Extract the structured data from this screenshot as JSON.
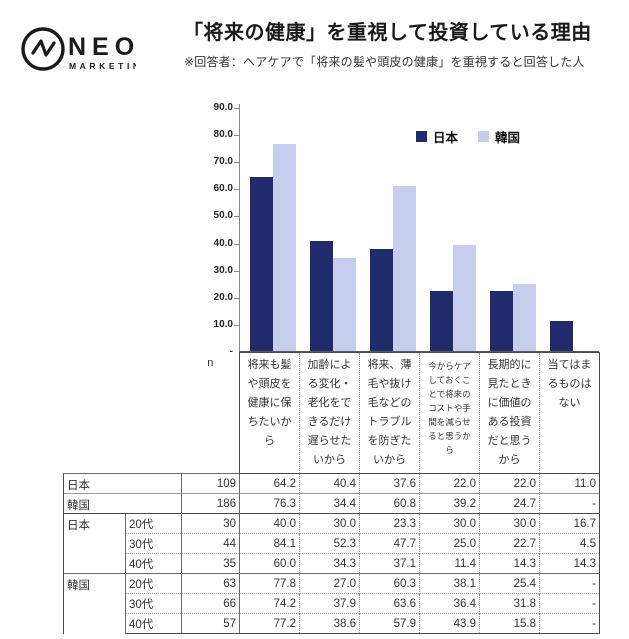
{
  "logo": {
    "brand": "NEO",
    "sub": "MARKETING"
  },
  "header": {
    "title": "「将来の健康」を重視して投資している理由",
    "subtitle": "※回答者：ヘアケアで「将来の髪や頭皮の健康」を重視すると回答した人"
  },
  "colors": {
    "japan": "#1f2b6b",
    "korea": "#c7cdec",
    "axis": "#8a8a8a"
  },
  "chart_data": {
    "type": "bar",
    "categories": [
      "将来も髪や頭皮を健康に保ちたいから",
      "加齢による変化・老化をできるだけ遅らせたいから",
      "将来、薄毛や抜け毛などのトラブルを防ぎたいから",
      "今からケアしておくことで将来のコストや手間を減らせると思うから",
      "長期的に見たときに価値のある投資だと思うから",
      "当てはまるものはない"
    ],
    "series": [
      {
        "name": "日本",
        "color": "#1f2b6b",
        "values": [
          64.2,
          40.4,
          37.6,
          22.0,
          22.0,
          11.0
        ]
      },
      {
        "name": "韓国",
        "color": "#c7cdec",
        "values": [
          76.3,
          34.4,
          60.8,
          39.2,
          24.7,
          null
        ]
      }
    ],
    "ylim": [
      0,
      90
    ],
    "ytick_values": [
      90,
      80,
      70,
      60,
      50,
      40,
      30,
      20,
      10,
      0
    ],
    "ytick_labels": [
      "90.0",
      "80.0",
      "70.0",
      "60.0",
      "50.0",
      "40.0",
      "30.0",
      "20.0",
      "10.0",
      "-"
    ],
    "grid": false,
    "legend_position": "top-right-inside"
  },
  "table": {
    "n_label": "n",
    "col_headers": [
      "将来も髪や頭皮を健康に保ちたいから",
      "加齢による変化・老化をできるだけ遅らせたいから",
      "将来、薄毛や抜け毛などのトラブルを防ぎたいから",
      "今からケアしておくことで将来のコストや手間を減らせると思うから",
      "長期的に見たときに価値のある投資だと思うから",
      "当てはまるものはない"
    ],
    "rows": [
      {
        "kind": "total",
        "label": "日本",
        "n": "109",
        "values": [
          "64.2",
          "40.4",
          "37.6",
          "22.0",
          "22.0",
          "11.0"
        ],
        "sep": "bt-solid"
      },
      {
        "kind": "total",
        "label": "韓国",
        "n": "186",
        "values": [
          "76.3",
          "34.4",
          "60.8",
          "39.2",
          "24.7",
          "-"
        ],
        "sep": "bt-thin"
      },
      {
        "kind": "age",
        "group": "日本",
        "groupspan": 3,
        "age": "20代",
        "n": "30",
        "values": [
          "40.0",
          "30.0",
          "23.3",
          "30.0",
          "30.0",
          "16.7"
        ],
        "sep": "bt-heavy"
      },
      {
        "kind": "age",
        "age": "30代",
        "n": "44",
        "values": [
          "84.1",
          "52.3",
          "47.7",
          "25.0",
          "22.7",
          "4.5"
        ],
        "sep": "bt-dot"
      },
      {
        "kind": "age",
        "age": "40代",
        "n": "35",
        "values": [
          "60.0",
          "34.3",
          "37.1",
          "11.4",
          "14.3",
          "14.3"
        ],
        "sep": "bt-dot"
      },
      {
        "kind": "age",
        "group": "韓国",
        "groupspan": 3,
        "age": "20代",
        "n": "63",
        "values": [
          "77.8",
          "27.0",
          "60.3",
          "38.1",
          "25.4",
          "-"
        ],
        "sep": "bt-solid"
      },
      {
        "kind": "age",
        "age": "30代",
        "n": "66",
        "values": [
          "74.2",
          "37.9",
          "63.6",
          "36.4",
          "31.8",
          "-"
        ],
        "sep": "bt-dot"
      },
      {
        "kind": "age",
        "age": "40代",
        "n": "57",
        "values": [
          "77.2",
          "38.6",
          "57.9",
          "43.9",
          "15.8",
          "-"
        ],
        "sep": "bt-dot"
      }
    ]
  }
}
